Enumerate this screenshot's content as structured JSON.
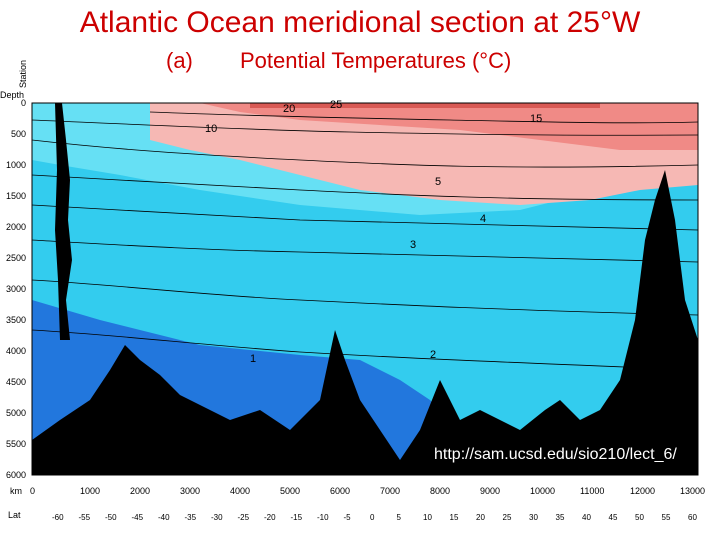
{
  "title": "Atlantic Ocean meridional section at 25°W",
  "panel": "(a)",
  "subtitle": "Potential Temperatures (°C)",
  "axis_labels": {
    "station": "Station",
    "depth": "Depth",
    "km": "km",
    "lat": "Lat"
  },
  "depth_ticks": [
    "0",
    "500",
    "1000",
    "1500",
    "2000",
    "2500",
    "3000",
    "3500",
    "4000",
    "4500",
    "5000",
    "5500",
    "6000"
  ],
  "km_ticks": [
    "0",
    "1000",
    "2000",
    "3000",
    "4000",
    "5000",
    "6000",
    "7000",
    "8000",
    "9000",
    "10000",
    "11000",
    "12000",
    "13000"
  ],
  "lat_ticks": [
    "-60",
    "-55",
    "-50",
    "-45",
    "-40",
    "-35",
    "-30",
    "-25",
    "-20",
    "-15",
    "-10",
    "-5",
    "0",
    "5",
    "10",
    "15",
    "20",
    "25",
    "30",
    "35",
    "40",
    "45",
    "50",
    "55",
    "60"
  ],
  "contour_labels": [
    "1",
    "2",
    "3",
    "4",
    "5",
    "10",
    "15",
    "20",
    "25"
  ],
  "url": "http://sam.ucsd.edu/sio210/lect_6/",
  "colors": {
    "title": "#cc0000",
    "warm": "#f08a86",
    "warm_light": "#f6b8b4",
    "cold": "#33ccee",
    "cold_light": "#66e0f4",
    "deep": "#2277dd",
    "bottom": "#000000"
  }
}
